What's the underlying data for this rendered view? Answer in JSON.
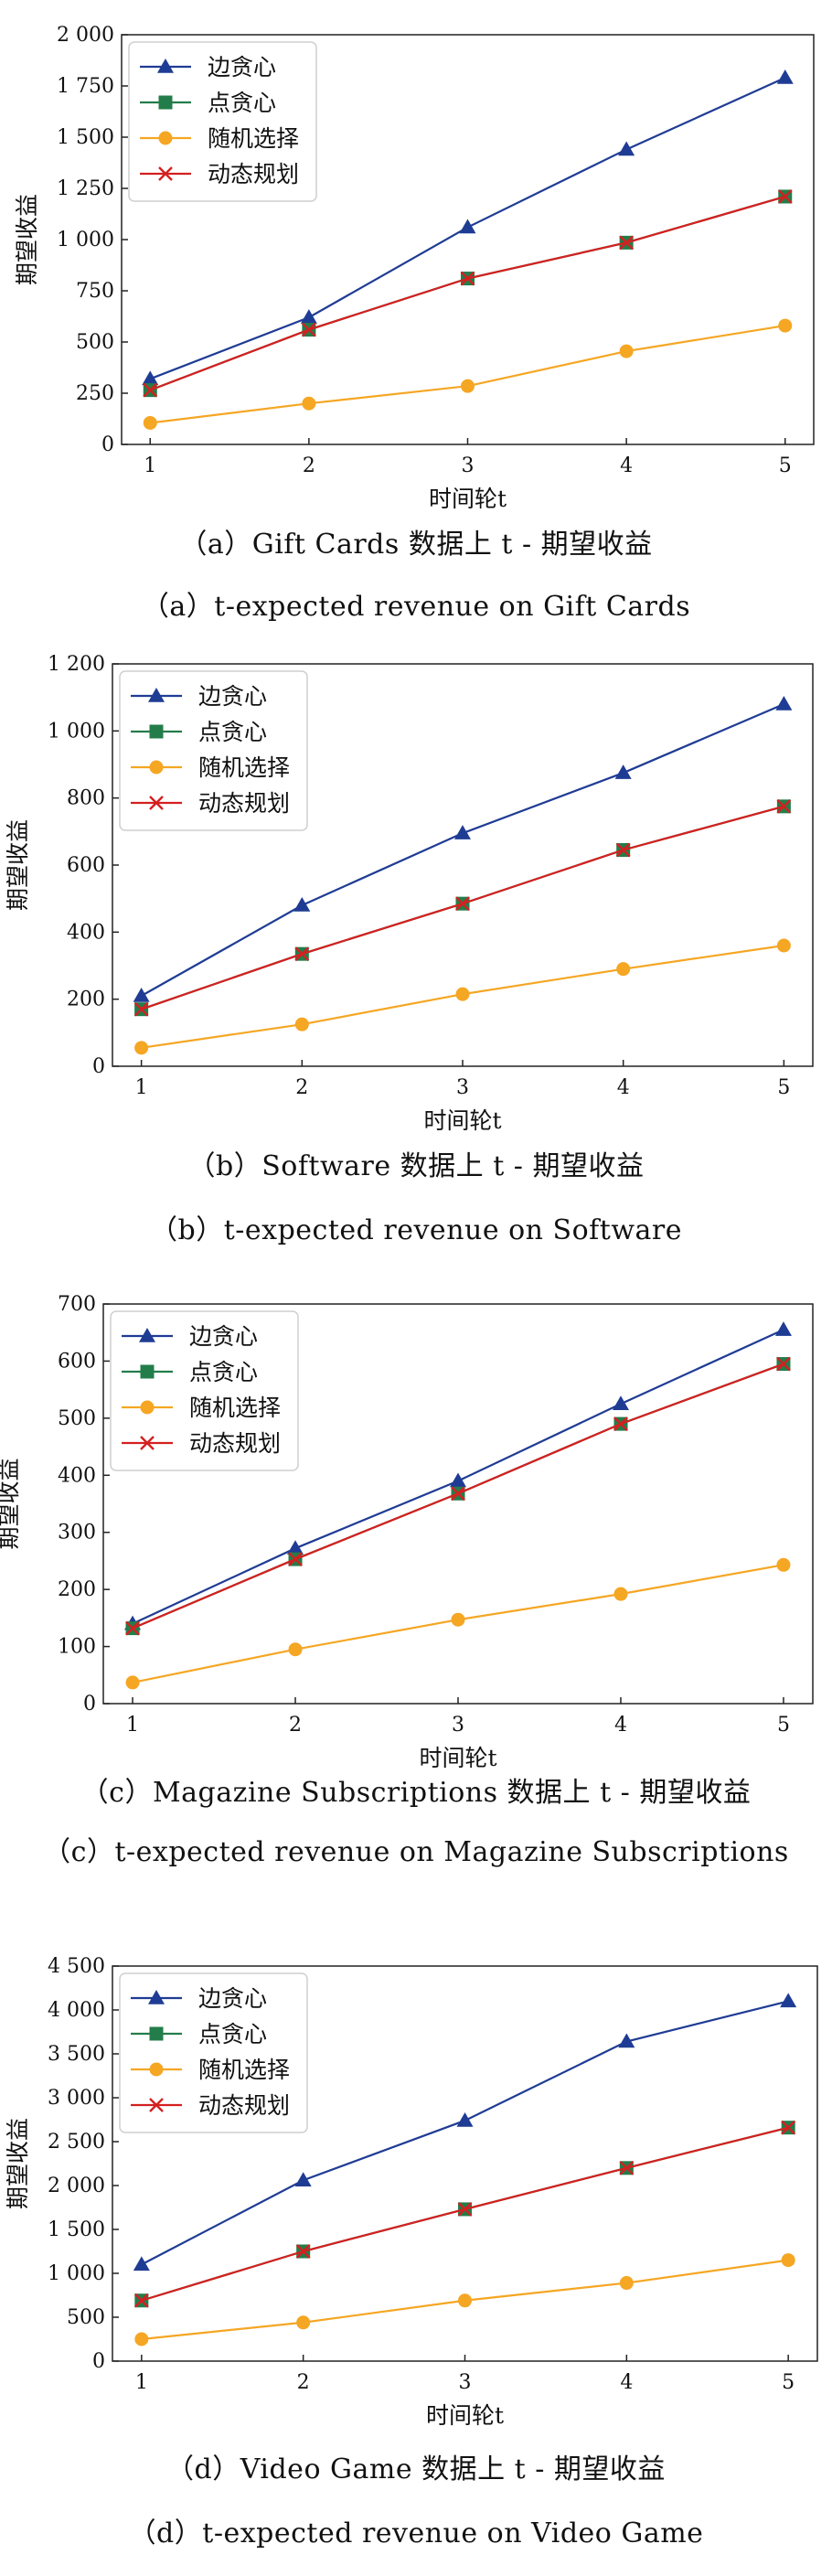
{
  "chart_data": [
    {
      "type": "line",
      "x": [
        1,
        2,
        3,
        4,
        5
      ],
      "xticks": [
        "1",
        "2",
        "3",
        "4",
        "5"
      ],
      "ylim": [
        0,
        2000
      ],
      "yticks": [
        0,
        250,
        500,
        750,
        1000,
        1250,
        1500,
        1750,
        2000
      ],
      "yticklabels": [
        "0",
        "250",
        "500",
        "750",
        "1 000",
        "1 250",
        "1 500",
        "1 750",
        "2 000"
      ],
      "xlabel": "时间轮t",
      "ylabel": "期望收益",
      "legend_position": "top-left",
      "grid": false,
      "series": [
        {
          "name": "边贪心",
          "color": "#1f3c94",
          "marker": "triangle",
          "values": [
            320,
            620,
            1060,
            1440,
            1790
          ]
        },
        {
          "name": "点贪心",
          "color": "#237d4a",
          "marker": "square",
          "values": [
            265,
            560,
            810,
            985,
            1210
          ]
        },
        {
          "name": "随机选择",
          "color": "#f5a623",
          "marker": "circle",
          "values": [
            105,
            200,
            285,
            455,
            580
          ]
        },
        {
          "name": "动态规划",
          "color": "#d42020",
          "marker": "x",
          "values": [
            265,
            560,
            810,
            985,
            1210
          ]
        }
      ],
      "caption_cn": "（a）Gift Cards 数据上 t - 期望收益",
      "caption_en": "（a）t-expected revenue on Gift Cards"
    },
    {
      "type": "line",
      "x": [
        1,
        2,
        3,
        4,
        5
      ],
      "xticks": [
        "1",
        "2",
        "3",
        "4",
        "5"
      ],
      "ylim": [
        0,
        1200
      ],
      "yticks": [
        0,
        200,
        400,
        600,
        800,
        1000,
        1200
      ],
      "yticklabels": [
        "0",
        "200",
        "400",
        "600",
        "800",
        "1 000",
        "1 200"
      ],
      "xlabel": "时间轮t",
      "ylabel": "期望收益",
      "legend_position": "top-left",
      "grid": false,
      "series": [
        {
          "name": "边贪心",
          "color": "#1f3c94",
          "marker": "triangle",
          "values": [
            210,
            480,
            695,
            875,
            1080
          ]
        },
        {
          "name": "点贪心",
          "color": "#237d4a",
          "marker": "square",
          "values": [
            170,
            335,
            485,
            645,
            775
          ]
        },
        {
          "name": "随机选择",
          "color": "#f5a623",
          "marker": "circle",
          "values": [
            55,
            125,
            215,
            290,
            360
          ]
        },
        {
          "name": "动态规划",
          "color": "#d42020",
          "marker": "x",
          "values": [
            170,
            335,
            485,
            645,
            775
          ]
        }
      ],
      "caption_cn": "（b）Software 数据上 t - 期望收益",
      "caption_en": "（b）t-expected revenue on Software"
    },
    {
      "type": "line",
      "x": [
        1,
        2,
        3,
        4,
        5
      ],
      "xticks": [
        "1",
        "2",
        "3",
        "4",
        "5"
      ],
      "ylim": [
        0,
        700
      ],
      "yticks": [
        0,
        100,
        200,
        300,
        400,
        500,
        600,
        700
      ],
      "yticklabels": [
        "0",
        "100",
        "200",
        "300",
        "400",
        "500",
        "600",
        "700"
      ],
      "xlabel": "时间轮t",
      "ylabel": "期望收益",
      "legend_position": "top-left",
      "grid": false,
      "series": [
        {
          "name": "边贪心",
          "color": "#1f3c94",
          "marker": "triangle",
          "values": [
            140,
            272,
            390,
            525,
            655
          ]
        },
        {
          "name": "点贪心",
          "color": "#237d4a",
          "marker": "square",
          "values": [
            132,
            253,
            368,
            490,
            595
          ]
        },
        {
          "name": "随机选择",
          "color": "#f5a623",
          "marker": "circle",
          "values": [
            37,
            95,
            147,
            192,
            243
          ]
        },
        {
          "name": "动态规划",
          "color": "#d42020",
          "marker": "x",
          "values": [
            132,
            253,
            368,
            490,
            595
          ]
        }
      ],
      "caption_cn": "（c）Magazine Subscriptions 数据上 t - 期望收益",
      "caption_en": "（c）t-expected revenue on Magazine Subscriptions"
    },
    {
      "type": "line",
      "x": [
        1,
        2,
        3,
        4,
        5
      ],
      "xticks": [
        "1",
        "2",
        "3",
        "4",
        "5"
      ],
      "ylim": [
        0,
        4500
      ],
      "yticks": [
        0,
        500,
        1000,
        1500,
        2000,
        2500,
        3000,
        3500,
        4000,
        4500
      ],
      "yticklabels": [
        "0",
        "500",
        "1 000",
        "1 500",
        "2 000",
        "2 500",
        "3 000",
        "3 500",
        "4 000",
        "4 500"
      ],
      "xlabel": "时间轮t",
      "ylabel": "期望收益",
      "legend_position": "top-left",
      "grid": false,
      "series": [
        {
          "name": "边贪心",
          "color": "#1f3c94",
          "marker": "triangle",
          "values": [
            1100,
            2060,
            2740,
            3640,
            4100
          ]
        },
        {
          "name": "点贪心",
          "color": "#237d4a",
          "marker": "square",
          "values": [
            690,
            1250,
            1730,
            2200,
            2660
          ]
        },
        {
          "name": "随机选择",
          "color": "#f5a623",
          "marker": "circle",
          "values": [
            250,
            440,
            690,
            890,
            1150
          ]
        },
        {
          "name": "动态规划",
          "color": "#d42020",
          "marker": "x",
          "values": [
            690,
            1250,
            1730,
            2200,
            2660
          ]
        }
      ],
      "caption_cn": "（d）Video Game 数据上 t - 期望收益",
      "caption_en": "（d）t-expected revenue on Video Game"
    }
  ]
}
